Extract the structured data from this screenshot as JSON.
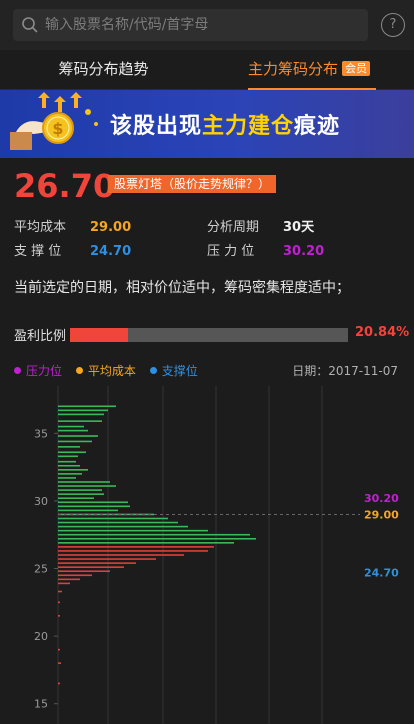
{
  "search": {
    "placeholder": "输入股票名称/代码/首字母",
    "help": "?"
  },
  "tabs": [
    {
      "label": "筹码分布趋势"
    },
    {
      "label": "主力筹码分布",
      "badge": "会员"
    }
  ],
  "banner": {
    "text_pre": "该股出现",
    "text_hl": "主力建仓",
    "text_post": "痕迹"
  },
  "price": {
    "value": "26.70",
    "tag": "股票灯塔（股价走势规律？）"
  },
  "stats": {
    "avg_cost_label": "平均成本",
    "avg_cost": "29.00",
    "period_label": "分析周期",
    "period": "30天",
    "support_label": "支 撑 位",
    "support": "24.70",
    "pressure_label": "压 力 位",
    "pressure": "30.20"
  },
  "description": "当前选定的日期，相对价位适中，筹码密集程度适中；",
  "profit": {
    "label": "盈利比例",
    "ratio": 0.2084,
    "text": "20.84%"
  },
  "legend": [
    {
      "label": "压力位",
      "color": "#c020d0"
    },
    {
      "label": "平均成本",
      "color": "#f5a623"
    },
    {
      "label": "支撑位",
      "color": "#2f8fe0"
    }
  ],
  "date": "日期：2017-11-07",
  "colors": {
    "accent": "#ff8a2a",
    "price_red": "#f0453a",
    "profit_green": "#3cb85a",
    "loss_red": "#e0403a"
  },
  "chart_data": {
    "type": "bar",
    "orientation": "horizontal",
    "ylim": [
      13.5,
      38.5
    ],
    "yticks": [
      15,
      20,
      25,
      30,
      35
    ],
    "grid": true,
    "markers": [
      {
        "label": "30.20",
        "value": 30.2,
        "color": "#c020d0"
      },
      {
        "label": "29.00",
        "value": 29.0,
        "color": "#f5a623"
      },
      {
        "label": "24.70",
        "value": 24.7,
        "color": "#2f8fe0"
      }
    ],
    "current_price": 26.7,
    "chips": [
      [
        37.0,
        58
      ],
      [
        36.7,
        50
      ],
      [
        36.4,
        46
      ],
      [
        35.9,
        44
      ],
      [
        35.5,
        26
      ],
      [
        35.2,
        30
      ],
      [
        34.8,
        40
      ],
      [
        34.4,
        34
      ],
      [
        34.0,
        22
      ],
      [
        33.6,
        28
      ],
      [
        33.3,
        20
      ],
      [
        32.9,
        18
      ],
      [
        32.6,
        22
      ],
      [
        32.3,
        30
      ],
      [
        32.0,
        24
      ],
      [
        31.7,
        18
      ],
      [
        31.4,
        52
      ],
      [
        31.1,
        58
      ],
      [
        30.8,
        44
      ],
      [
        30.5,
        46
      ],
      [
        30.2,
        36
      ],
      [
        29.9,
        70
      ],
      [
        29.6,
        72
      ],
      [
        29.3,
        60
      ],
      [
        29.0,
        96
      ],
      [
        28.7,
        110
      ],
      [
        28.4,
        120
      ],
      [
        28.1,
        130
      ],
      [
        27.8,
        150
      ],
      [
        27.5,
        192
      ],
      [
        27.2,
        198
      ],
      [
        26.9,
        176
      ],
      [
        26.6,
        156
      ],
      [
        26.3,
        150
      ],
      [
        26.0,
        126
      ],
      [
        25.7,
        98
      ],
      [
        25.4,
        78
      ],
      [
        25.1,
        66
      ],
      [
        24.8,
        52
      ],
      [
        24.5,
        34
      ],
      [
        24.2,
        22
      ],
      [
        23.9,
        12
      ],
      [
        23.3,
        4
      ],
      [
        22.5,
        2
      ],
      [
        21.5,
        2
      ],
      [
        19.0,
        2
      ],
      [
        18.0,
        3
      ],
      [
        16.5,
        2
      ]
    ]
  }
}
